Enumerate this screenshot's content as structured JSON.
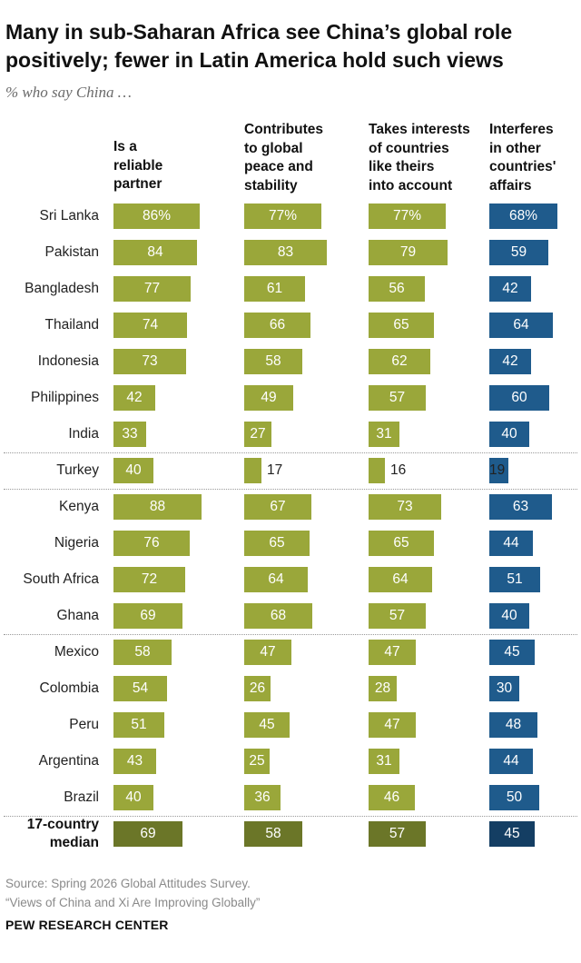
{
  "title": "Many in sub-Saharan Africa see China’s global role positively; fewer in Latin America hold such views",
  "subtitle": "% who say China …",
  "source": {
    "line1": "Source: Spring 2026 Global Attitudes Survey.",
    "line2": "“Views of China and Xi Are Improving Globally”"
  },
  "brand": "PEW RESEARCH CENTER",
  "colors": {
    "green": "#9aa73a",
    "green_median": "#6b7628",
    "blue": "#1f5b8c",
    "blue_median": "#143e63",
    "label_inside": "#ffffff",
    "label_outside": "#222222"
  },
  "chart_data": {
    "type": "bar",
    "orientation": "horizontal",
    "panels": 4,
    "series": [
      {
        "name": "Is a reliable partner",
        "label": "Is a\nreliable\npartner",
        "color": "green",
        "values": [
          86,
          84,
          77,
          74,
          73,
          42,
          33,
          40,
          88,
          76,
          72,
          69,
          58,
          54,
          51,
          43,
          40,
          69
        ]
      },
      {
        "name": "Contributes to global peace and stability",
        "label": "Contributes\nto global\npeace and\nstability",
        "color": "green",
        "values": [
          77,
          83,
          61,
          66,
          58,
          49,
          27,
          17,
          67,
          65,
          64,
          68,
          47,
          26,
          45,
          25,
          36,
          58
        ]
      },
      {
        "name": "Takes interests of countries like theirs into account",
        "label": "Takes interests\nof countries\nlike theirs\ninto account",
        "color": "green",
        "values": [
          77,
          79,
          56,
          65,
          62,
          57,
          31,
          16,
          73,
          65,
          64,
          57,
          47,
          28,
          47,
          31,
          46,
          57
        ]
      },
      {
        "name": "Interferes in other countries' affairs",
        "label": "Interferes\nin other\ncountries'\naffairs",
        "color": "blue",
        "values": [
          68,
          59,
          42,
          64,
          42,
          60,
          40,
          19,
          63,
          44,
          51,
          40,
          45,
          30,
          48,
          44,
          50,
          45
        ]
      }
    ],
    "categories": [
      "Sri Lanka",
      "Pakistan",
      "Bangladesh",
      "Thailand",
      "Indonesia",
      "Philippines",
      "India",
      "Turkey",
      "Kenya",
      "Nigeria",
      "South Africa",
      "Ghana",
      "Mexico",
      "Colombia",
      "Peru",
      "Argentina",
      "Brazil",
      "17-country median"
    ],
    "first_row_percent_sign": true,
    "median_row": "17-country median",
    "group_dividers_after": [
      "India",
      "Turkey",
      "Ghana",
      "Brazil"
    ],
    "xlim": [
      0,
      100
    ],
    "grid": false,
    "legend": "none"
  }
}
